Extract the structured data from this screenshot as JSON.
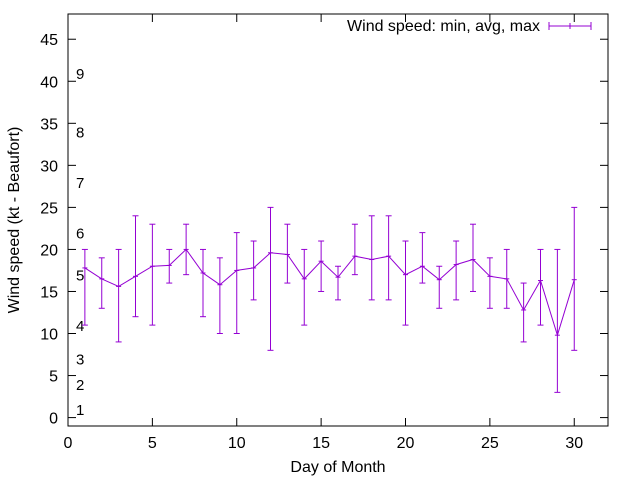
{
  "chart_data": {
    "type": "line",
    "xlabel": "Day of Month",
    "ylabel": "Wind speed (kt - Beaufort)",
    "xlim": [
      0,
      32
    ],
    "ylim": [
      -1,
      48
    ],
    "x_ticks": [
      0,
      5,
      10,
      15,
      20,
      25,
      30
    ],
    "y_ticks": [
      0,
      5,
      10,
      15,
      20,
      25,
      30,
      35,
      40,
      45
    ],
    "grid": false,
    "legend_position": "top-right",
    "series": [
      {
        "name": "Wind speed: min, avg, max",
        "color": "#9400d3",
        "points": [
          {
            "x": 1,
            "y": 17.8,
            "min": 11,
            "max": 20
          },
          {
            "x": 2,
            "y": 16.5,
            "min": 13,
            "max": 19
          },
          {
            "x": 3,
            "y": 15.6,
            "min": 9,
            "max": 20
          },
          {
            "x": 4,
            "y": 16.8,
            "min": 12,
            "max": 24
          },
          {
            "x": 5,
            "y": 18.0,
            "min": 11,
            "max": 23
          },
          {
            "x": 6,
            "y": 18.1,
            "min": 16,
            "max": 20
          },
          {
            "x": 7,
            "y": 20.0,
            "min": 17,
            "max": 23
          },
          {
            "x": 8,
            "y": 17.2,
            "min": 12,
            "max": 20
          },
          {
            "x": 9,
            "y": 15.8,
            "min": 10,
            "max": 19
          },
          {
            "x": 10,
            "y": 17.5,
            "min": 10,
            "max": 22
          },
          {
            "x": 11,
            "y": 17.8,
            "min": 14,
            "max": 21
          },
          {
            "x": 12,
            "y": 19.6,
            "min": 8,
            "max": 25
          },
          {
            "x": 13,
            "y": 19.4,
            "min": 16,
            "max": 23
          },
          {
            "x": 14,
            "y": 16.5,
            "min": 11,
            "max": 20
          },
          {
            "x": 15,
            "y": 18.6,
            "min": 15,
            "max": 21
          },
          {
            "x": 16,
            "y": 16.7,
            "min": 14,
            "max": 18
          },
          {
            "x": 17,
            "y": 19.2,
            "min": 17,
            "max": 23
          },
          {
            "x": 18,
            "y": 18.8,
            "min": 14,
            "max": 24
          },
          {
            "x": 19,
            "y": 19.2,
            "min": 14,
            "max": 24
          },
          {
            "x": 20,
            "y": 17.0,
            "min": 11,
            "max": 21
          },
          {
            "x": 21,
            "y": 18.0,
            "min": 16,
            "max": 22
          },
          {
            "x": 22,
            "y": 16.4,
            "min": 13,
            "max": 18
          },
          {
            "x": 23,
            "y": 18.2,
            "min": 14,
            "max": 21
          },
          {
            "x": 24,
            "y": 18.8,
            "min": 15,
            "max": 23
          },
          {
            "x": 25,
            "y": 16.8,
            "min": 13,
            "max": 19
          },
          {
            "x": 26,
            "y": 16.5,
            "min": 13,
            "max": 20
          },
          {
            "x": 27,
            "y": 12.8,
            "min": 9,
            "max": 16
          },
          {
            "x": 28,
            "y": 16.3,
            "min": 11,
            "max": 20
          },
          {
            "x": 29,
            "y": 9.8,
            "min": 3,
            "max": 20
          },
          {
            "x": 30,
            "y": 16.4,
            "min": 8,
            "max": 25
          }
        ]
      }
    ],
    "beaufort_labels": [
      {
        "label": "1",
        "y": 1
      },
      {
        "label": "2",
        "y": 4
      },
      {
        "label": "3",
        "y": 7
      },
      {
        "label": "4",
        "y": 11
      },
      {
        "label": "5",
        "y": 17
      },
      {
        "label": "6",
        "y": 22
      },
      {
        "label": "7",
        "y": 28
      },
      {
        "label": "8",
        "y": 34
      },
      {
        "label": "9",
        "y": 41
      }
    ]
  }
}
